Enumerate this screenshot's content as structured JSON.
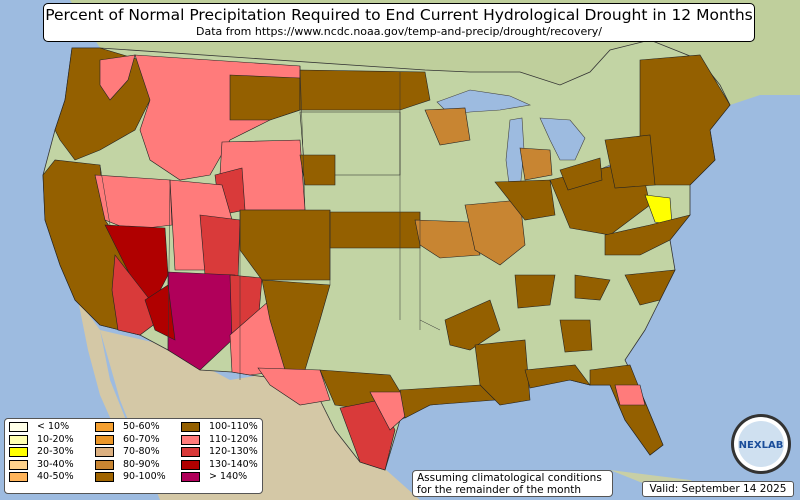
{
  "title": "Percent of Normal Precipitation Required to End Current Hydrological Drought in 12 Months",
  "subtitle": "Data from https://www.ncdc.noaa.gov/temp-and-precip/drought/recovery/",
  "legend": [
    {
      "label": "< 10%",
      "color": "#ffffe8"
    },
    {
      "label": "10-20%",
      "color": "#ffffb0"
    },
    {
      "label": "20-30%",
      "color": "#ffff00"
    },
    {
      "label": "30-40%",
      "color": "#ffd38c"
    },
    {
      "label": "40-50%",
      "color": "#ffb45a"
    },
    {
      "label": "50-60%",
      "color": "#f5a030"
    },
    {
      "label": "60-70%",
      "color": "#eb9628"
    },
    {
      "label": "70-80%",
      "color": "#dcb080"
    },
    {
      "label": "80-90%",
      "color": "#c88532"
    },
    {
      "label": "90-100%",
      "color": "#a06400"
    },
    {
      "label": "100-110%",
      "color": "#946000"
    },
    {
      "label": "110-120%",
      "color": "#ff7b7b"
    },
    {
      "label": "120-130%",
      "color": "#d93a3a"
    },
    {
      "label": "130-140%",
      "color": "#b00000"
    },
    {
      "label": "> 140%",
      "color": "#b0005a"
    }
  ],
  "note": {
    "line1": "Assuming climatological conditions",
    "line2": "for the remainder of the month"
  },
  "valid": "Valid: September 14 2025",
  "logo_text": "NEXLAB"
}
